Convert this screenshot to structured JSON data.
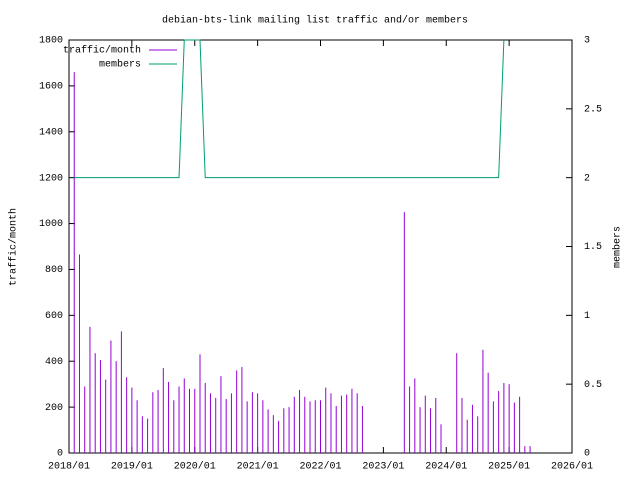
{
  "chart_data": {
    "type": "impulse-line",
    "title": "debian-bts-link mailing list traffic and/or members",
    "y_label": "traffic/month",
    "y2_label": "members",
    "xlim": [
      "2018/01",
      "2026/01"
    ],
    "xticks": [
      "2018/01",
      "2019/01",
      "2020/01",
      "2021/01",
      "2022/01",
      "2023/01",
      "2024/01",
      "2025/01",
      "2026/01"
    ],
    "ylim": [
      0,
      1800
    ],
    "yticks": [
      0,
      200,
      400,
      600,
      800,
      1000,
      1200,
      1400,
      1600,
      1800
    ],
    "y2lim": [
      0,
      3
    ],
    "y2ticks": [
      0,
      0.5,
      1,
      1.5,
      2,
      2.5,
      3
    ],
    "legend": "top-left",
    "series": [
      {
        "name": "traffic/month",
        "color": "#9400d3",
        "style": "impulses",
        "x": [
          "2018/02",
          "2018/03",
          "2018/04",
          "2018/05",
          "2018/06",
          "2018/07",
          "2018/08",
          "2018/09",
          "2018/10",
          "2018/11",
          "2018/12",
          "2019/01",
          "2019/02",
          "2019/03",
          "2019/04",
          "2019/05",
          "2019/06",
          "2019/07",
          "2019/08",
          "2019/09",
          "2019/10",
          "2019/11",
          "2019/12",
          "2020/01",
          "2020/02",
          "2020/03",
          "2020/04",
          "2020/05",
          "2020/06",
          "2020/07",
          "2020/08",
          "2020/09",
          "2020/10",
          "2020/11",
          "2020/12",
          "2021/01",
          "2021/02",
          "2021/03",
          "2021/04",
          "2021/05",
          "2021/06",
          "2021/07",
          "2021/08",
          "2021/09",
          "2021/10",
          "2021/11",
          "2021/12",
          "2022/01",
          "2022/02",
          "2022/03",
          "2022/04",
          "2022/05",
          "2022/06",
          "2022/07",
          "2022/08",
          "2022/09",
          "2023/05",
          "2023/06",
          "2023/07",
          "2023/08",
          "2023/09",
          "2023/10",
          "2023/11",
          "2023/12",
          "2024/03",
          "2024/04",
          "2024/05",
          "2024/06",
          "2024/07",
          "2024/08",
          "2024/09",
          "2024/10",
          "2024/11",
          "2024/12",
          "2025/01",
          "2025/02",
          "2025/03",
          "2025/04",
          "2025/05"
        ],
        "values": [
          1660,
          865,
          290,
          550,
          435,
          405,
          320,
          490,
          400,
          530,
          330,
          285,
          230,
          160,
          150,
          265,
          275,
          370,
          310,
          230,
          290,
          325,
          280,
          280,
          430,
          305,
          260,
          240,
          335,
          235,
          260,
          360,
          375,
          225,
          265,
          260,
          230,
          190,
          165,
          140,
          195,
          200,
          245,
          275,
          245,
          225,
          230,
          230,
          285,
          260,
          205,
          250,
          255,
          280,
          260,
          205,
          1050,
          290,
          325,
          200,
          250,
          195,
          240,
          125,
          435,
          240,
          145,
          210,
          160,
          450,
          350,
          225,
          270,
          305,
          300,
          220,
          245,
          30,
          30
        ]
      },
      {
        "name": "members",
        "color": "#009e73",
        "style": "line",
        "axis": "y2",
        "x": [
          "2018/02",
          "2019/10",
          "2019/11",
          "2020/02",
          "2020/03",
          "2024/11",
          "2024/12"
        ],
        "values": [
          2,
          2,
          3,
          3,
          2,
          2,
          3
        ]
      }
    ]
  }
}
